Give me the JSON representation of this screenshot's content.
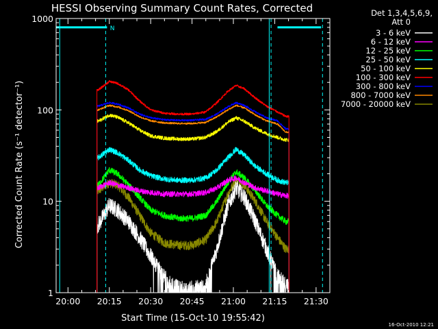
{
  "chart_data": {
    "type": "line",
    "title": "HESSI Observing Summary Count Rates, Corrected",
    "xlabel": "Start Time (15-Oct-10 19:55:42)",
    "ylabel": "Corrected Count Rate (s⁻¹ detector⁻¹)",
    "yscale": "log",
    "xlim": [
      "19:55:42",
      "21:35:00"
    ],
    "ylim": [
      1,
      1000
    ],
    "x_ticks": [
      "20:00",
      "20:15",
      "20:30",
      "20:45",
      "21:00",
      "21:15",
      "21:30"
    ],
    "y_ticks": [
      "1",
      "10",
      "100",
      "1000"
    ],
    "grid": false,
    "legend_header": [
      "Det 1,3,4,5,6,9,",
      "Att 0"
    ],
    "legend_placement": "right",
    "timestamp": "16-Oct-2010 12:21",
    "annotations": [
      {
        "type": "night-bar",
        "x_start": "19:55:42",
        "x_end": "20:14:10",
        "y": 800
      },
      {
        "type": "night-bar",
        "x_start": "21:16:00",
        "x_end": "21:31:50",
        "y": 800
      },
      {
        "type": "saa-label",
        "x": "20:15:15",
        "y": 800,
        "text": "N"
      },
      {
        "type": "vline-solid",
        "x": "19:57:00"
      },
      {
        "type": "vline-solid",
        "x": "21:13:00"
      },
      {
        "type": "vline-dashed",
        "x": "20:13:40"
      },
      {
        "type": "vline-dashed",
        "x": "21:13:40"
      },
      {
        "type": "vline-dashed",
        "x": "21:32:20"
      }
    ],
    "data_start": "20:10:30",
    "data_end": "21:20:10",
    "x_points": [
      "20:11",
      "20:15",
      "20:18",
      "20:22",
      "20:26",
      "20:30",
      "20:35",
      "20:40",
      "20:45",
      "20:50",
      "20:54",
      "20:58",
      "21:01",
      "21:04",
      "21:08",
      "21:12",
      "21:16",
      "21:19"
    ],
    "series": [
      {
        "name": "3 - 6 keV",
        "color": "#ffffff",
        "values": [
          5.5,
          9,
          8,
          6,
          4,
          2.5,
          1.5,
          1.1,
          1.1,
          1.2,
          3,
          9,
          14,
          11,
          6,
          3,
          1.5,
          1.2
        ]
      },
      {
        "name": "6 - 12 keV",
        "color": "#ff00ff",
        "values": [
          14,
          16,
          15,
          14,
          13,
          12.5,
          12,
          12,
          12,
          12.5,
          14,
          17,
          18,
          16,
          14,
          13,
          12,
          11.5
        ]
      },
      {
        "name": "12 - 25 keV",
        "color": "#00ff00",
        "values": [
          15,
          22,
          20,
          15,
          11,
          8,
          7,
          6.5,
          6.5,
          7,
          10,
          16,
          21,
          18,
          13,
          9,
          7,
          6
        ]
      },
      {
        "name": "25 - 50 keV",
        "color": "#00ffff",
        "values": [
          30,
          37,
          34,
          28,
          22,
          19,
          17.5,
          17,
          17,
          18,
          22,
          30,
          37,
          32,
          24,
          20,
          17,
          16
        ]
      },
      {
        "name": "50 - 100 keV",
        "color": "#ffff00",
        "values": [
          75,
          88,
          83,
          72,
          60,
          52,
          49,
          48,
          48,
          50,
          58,
          73,
          82,
          75,
          63,
          55,
          50,
          47
        ]
      },
      {
        "name": "100 - 300 keV",
        "color": "#ff0000",
        "values": [
          165,
          205,
          195,
          165,
          125,
          100,
          92,
          90,
          90,
          95,
          120,
          160,
          185,
          170,
          135,
          110,
          95,
          85
        ]
      },
      {
        "name": "300 - 800 keV",
        "color": "#0000ff",
        "values": [
          110,
          120,
          116,
          105,
          90,
          82,
          78,
          77,
          77,
          79,
          90,
          108,
          120,
          112,
          95,
          82,
          76,
          62
        ]
      },
      {
        "name": "800 - 7000 keV",
        "color": "#ff8800",
        "values": [
          100,
          112,
          108,
          98,
          84,
          76,
          72,
          71,
          71,
          73,
          84,
          100,
          112,
          105,
          88,
          76,
          70,
          57
        ]
      },
      {
        "name": "7000 - 20000 keV",
        "color": "#888800",
        "values": [
          13,
          16,
          15,
          11,
          7,
          4.5,
          3.5,
          3.3,
          3.3,
          3.8,
          6,
          12,
          17,
          15,
          10,
          6,
          4,
          3
        ]
      }
    ]
  }
}
